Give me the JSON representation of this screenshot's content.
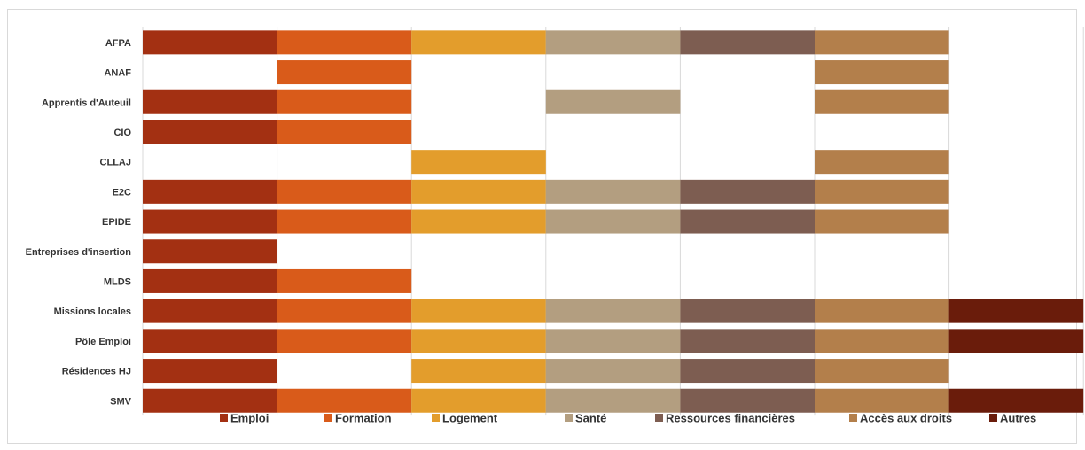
{
  "chart_data": {
    "type": "bar",
    "orientation": "horizontal",
    "stacked": true,
    "title": "",
    "xlabel": "",
    "ylabel": "",
    "grid": true,
    "legend_position": "bottom",
    "categories": [
      "AFPA",
      "ANAF",
      "Apprentis d'Auteuil",
      "CIO",
      "CLLAJ",
      "E2C",
      "EPIDE",
      "Entreprises d'insertion",
      "MLDS",
      "Missions locales",
      "Pôle Emploi",
      "Résidences HJ",
      "SMV"
    ],
    "series": [
      {
        "name": "Emploi",
        "color": "#A33012",
        "values": [
          1,
          0,
          1,
          1,
          0,
          1,
          1,
          1,
          1,
          1,
          1,
          1,
          1
        ]
      },
      {
        "name": "Formation",
        "color": "#D95B1A",
        "values": [
          1,
          1,
          1,
          1,
          0,
          1,
          1,
          0,
          1,
          1,
          1,
          0,
          1
        ]
      },
      {
        "name": "Logement",
        "color": "#E39D2C",
        "values": [
          1,
          0,
          0,
          0,
          1,
          1,
          1,
          0,
          0,
          1,
          1,
          1,
          1
        ]
      },
      {
        "name": "Santé",
        "color": "#B39E80",
        "values": [
          1,
          0,
          1,
          0,
          0,
          1,
          1,
          0,
          0,
          1,
          1,
          1,
          1
        ]
      },
      {
        "name": "Ressources financières",
        "color": "#7D5D51",
        "values": [
          1,
          0,
          0,
          0,
          0,
          1,
          1,
          0,
          0,
          1,
          1,
          1,
          1
        ]
      },
      {
        "name": "Accès aux droits",
        "color": "#B37F4B",
        "values": [
          1,
          1,
          1,
          0,
          1,
          1,
          1,
          0,
          0,
          1,
          1,
          1,
          1
        ]
      },
      {
        "name": "Autres",
        "color": "#6A1C0B",
        "values": [
          0,
          0,
          0,
          0,
          0,
          0,
          0,
          0,
          0,
          1,
          1,
          0,
          1
        ]
      }
    ]
  }
}
